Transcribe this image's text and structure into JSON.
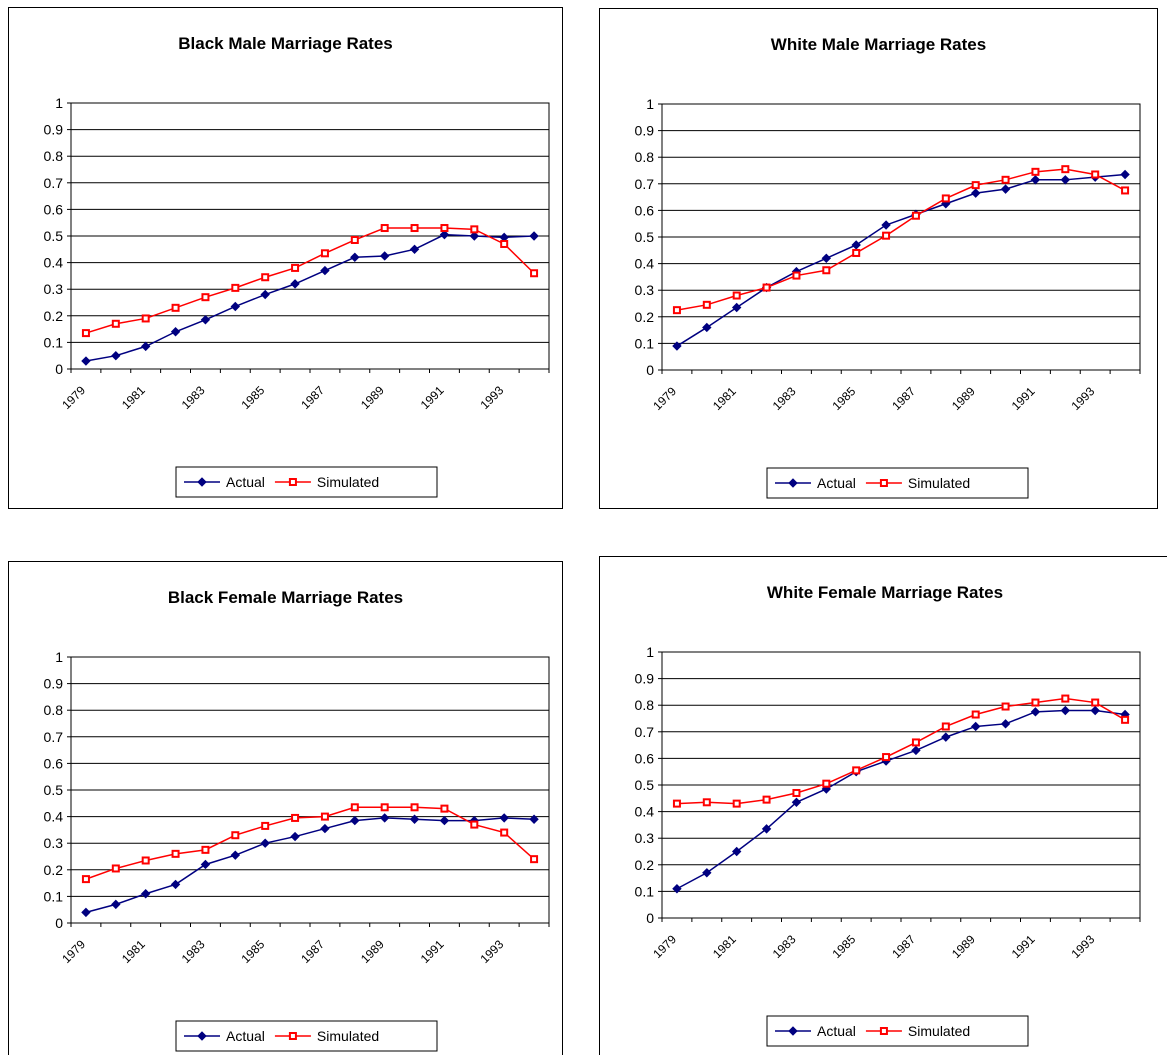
{
  "chart_data": [
    {
      "type": "line",
      "title": "Black Male Marriage Rates",
      "categories": [
        "1979",
        null,
        "1981",
        null,
        "1983",
        null,
        "1985",
        null,
        "1987",
        null,
        "1989",
        null,
        "1991",
        null,
        "1993",
        null
      ],
      "series": [
        {
          "name": "Actual",
          "color": "#000080",
          "marker": "diamond",
          "values": [
            0.03,
            0.05,
            0.085,
            0.14,
            0.185,
            0.235,
            0.28,
            0.32,
            0.37,
            0.42,
            0.425,
            0.45,
            0.505,
            0.5,
            0.495,
            0.5
          ]
        },
        {
          "name": "Simulated",
          "color": "#ff0000",
          "marker": "square",
          "values": [
            0.135,
            0.17,
            0.19,
            0.23,
            0.27,
            0.305,
            0.345,
            0.38,
            0.435,
            0.485,
            0.53,
            0.53,
            0.53,
            0.525,
            0.47,
            0.36
          ]
        }
      ],
      "ylim": [
        0,
        1
      ],
      "yticks": [
        0,
        0.1,
        0.2,
        0.3,
        0.4,
        0.5,
        0.6,
        0.7,
        0.8,
        0.9,
        1
      ],
      "grid": true,
      "legend": "bottom"
    },
    {
      "type": "line",
      "title": "White Male Marriage Rates",
      "categories": [
        "1979",
        null,
        "1981",
        null,
        "1983",
        null,
        "1985",
        null,
        "1987",
        null,
        "1989",
        null,
        "1991",
        null,
        "1993",
        null
      ],
      "series": [
        {
          "name": "Actual",
          "color": "#000080",
          "marker": "diamond",
          "values": [
            0.09,
            0.16,
            0.235,
            0.31,
            0.37,
            0.42,
            0.47,
            0.545,
            0.585,
            0.625,
            0.665,
            0.68,
            0.715,
            0.715,
            0.725,
            0.735
          ]
        },
        {
          "name": "Simulated",
          "color": "#ff0000",
          "marker": "square",
          "values": [
            0.225,
            0.245,
            0.28,
            0.31,
            0.355,
            0.375,
            0.44,
            0.505,
            0.58,
            0.645,
            0.695,
            0.715,
            0.745,
            0.755,
            0.735,
            0.675
          ]
        }
      ],
      "ylim": [
        0,
        1
      ],
      "yticks": [
        0,
        0.1,
        0.2,
        0.3,
        0.4,
        0.5,
        0.6,
        0.7,
        0.8,
        0.9,
        1
      ],
      "grid": true,
      "legend": "bottom"
    },
    {
      "type": "line",
      "title": "Black Female Marriage Rates",
      "categories": [
        "1979",
        null,
        "1981",
        null,
        "1983",
        null,
        "1985",
        null,
        "1987",
        null,
        "1989",
        null,
        "1991",
        null,
        "1993",
        null
      ],
      "series": [
        {
          "name": "Actual",
          "color": "#000080",
          "marker": "diamond",
          "values": [
            0.04,
            0.07,
            0.11,
            0.145,
            0.22,
            0.255,
            0.3,
            0.325,
            0.355,
            0.385,
            0.395,
            0.39,
            0.385,
            0.385,
            0.395,
            0.39
          ]
        },
        {
          "name": "Simulated",
          "color": "#ff0000",
          "marker": "square",
          "values": [
            0.165,
            0.205,
            0.235,
            0.26,
            0.275,
            0.33,
            0.365,
            0.395,
            0.4,
            0.435,
            0.435,
            0.435,
            0.43,
            0.37,
            0.34,
            0.24
          ]
        }
      ],
      "ylim": [
        0,
        1
      ],
      "yticks": [
        0,
        0.1,
        0.2,
        0.3,
        0.4,
        0.5,
        0.6,
        0.7,
        0.8,
        0.9,
        1
      ],
      "grid": true,
      "legend": "bottom"
    },
    {
      "type": "line",
      "title": "White Female Marriage Rates",
      "categories": [
        "1979",
        null,
        "1981",
        null,
        "1983",
        null,
        "1985",
        null,
        "1987",
        null,
        "1989",
        null,
        "1991",
        null,
        "1993",
        null
      ],
      "series": [
        {
          "name": "Actual",
          "color": "#000080",
          "marker": "diamond",
          "values": [
            0.11,
            0.17,
            0.25,
            0.335,
            0.435,
            0.485,
            0.55,
            0.59,
            0.63,
            0.68,
            0.72,
            0.73,
            0.775,
            0.78,
            0.78,
            0.765
          ]
        },
        {
          "name": "Simulated",
          "color": "#ff0000",
          "marker": "square",
          "values": [
            0.43,
            0.435,
            0.43,
            0.445,
            0.47,
            0.505,
            0.555,
            0.605,
            0.66,
            0.72,
            0.765,
            0.795,
            0.81,
            0.825,
            0.81,
            0.745
          ]
        }
      ],
      "ylim": [
        0,
        1
      ],
      "yticks": [
        0,
        0.1,
        0.2,
        0.3,
        0.4,
        0.5,
        0.6,
        0.7,
        0.8,
        0.9,
        1
      ],
      "grid": true,
      "legend": "bottom"
    }
  ]
}
